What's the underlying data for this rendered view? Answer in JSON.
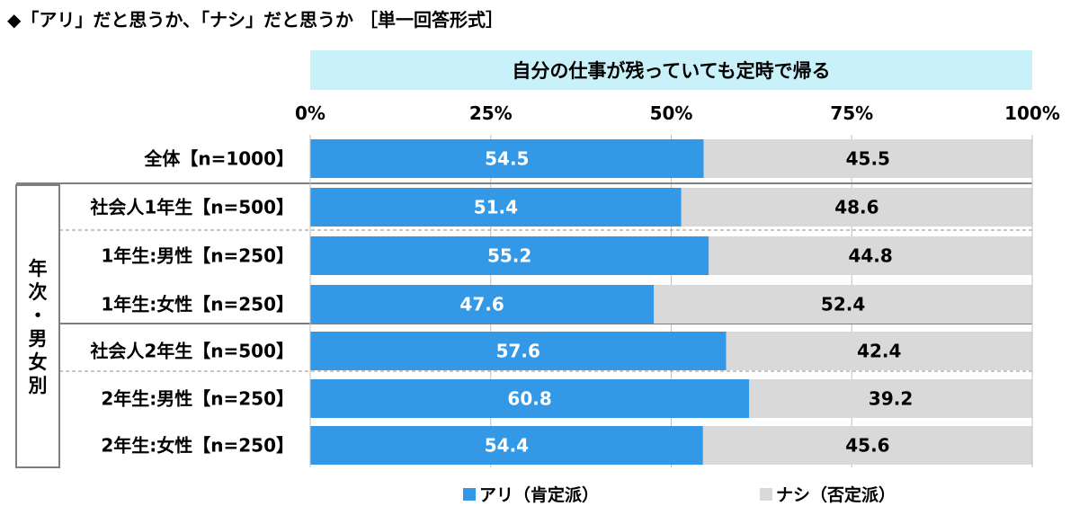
{
  "title": "◆「アリ」だと思うか、「ナシ」だと思うか ［単一回答形式］",
  "question": "自分の仕事が残っていても定時で帰る",
  "group_label": "年次・男女別",
  "colors": {
    "ari": "#3399e6",
    "nashi": "#d9d9d9",
    "question_bg": "#c9f1f9"
  },
  "legend": [
    {
      "label": "アリ（肯定派）",
      "color": "#3399e6"
    },
    {
      "label": "ナシ（否定派）",
      "color": "#d9d9d9"
    }
  ],
  "chart_data": {
    "type": "bar",
    "orientation": "horizontal",
    "stacked": true,
    "x_ticks": [
      "0%",
      "25%",
      "50%",
      "75%",
      "100%"
    ],
    "xlim": [
      0,
      100
    ],
    "categories": [
      "全体【n=1000】",
      "社会人1年生【n=500】",
      "1年生:男性【n=250】",
      "1年生:女性【n=250】",
      "社会人2年生【n=500】",
      "2年生:男性【n=250】",
      "2年生:女性【n=250】"
    ],
    "series": [
      {
        "name": "アリ（肯定派）",
        "values": [
          54.5,
          51.4,
          55.2,
          47.6,
          57.6,
          60.8,
          54.4
        ],
        "labels": [
          "54.5",
          "51.4",
          "55.2",
          "47.6",
          "57.6",
          "60.8",
          "54.4"
        ]
      },
      {
        "name": "ナシ（否定派）",
        "values": [
          45.5,
          48.6,
          44.8,
          52.4,
          42.4,
          39.2,
          45.6
        ],
        "labels": [
          "45.5",
          "48.6",
          "44.8",
          "52.4",
          "42.4",
          "39.2",
          "45.6"
        ]
      }
    ]
  }
}
